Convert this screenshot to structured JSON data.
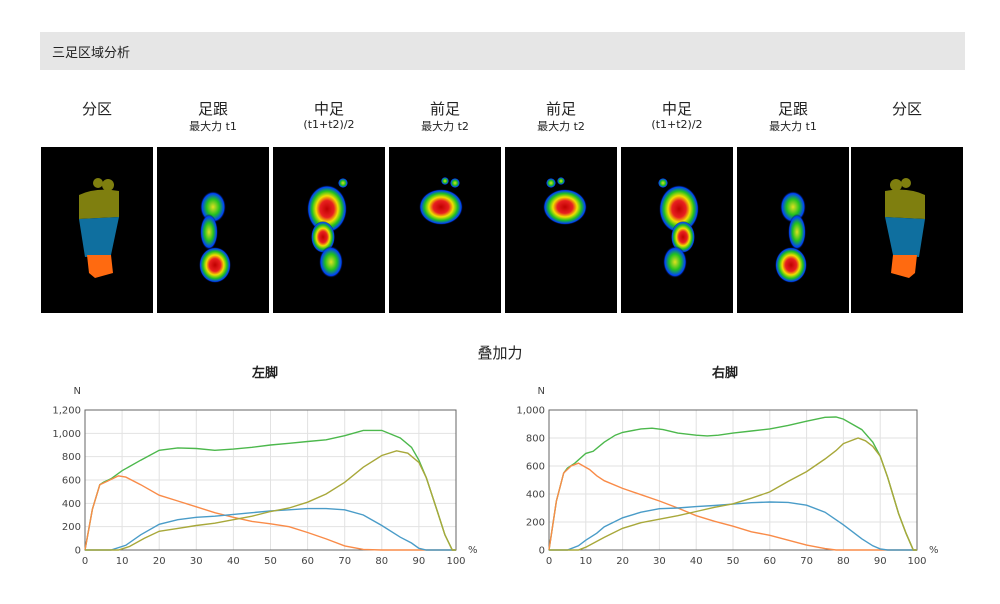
{
  "header": {
    "title": "三足区域分析"
  },
  "columns": [
    {
      "title": "分区",
      "sub": "",
      "kind": "seg",
      "side": "left"
    },
    {
      "title": "足跟",
      "sub": "最大力 t1",
      "kind": "heel",
      "side": "left"
    },
    {
      "title": "中足",
      "sub": "(t1+t2)/2",
      "kind": "mid",
      "side": "left"
    },
    {
      "title": "前足",
      "sub": "最大力 t2",
      "kind": "fore",
      "side": "left"
    },
    {
      "title": "前足",
      "sub": "最大力 t2",
      "kind": "fore",
      "side": "right"
    },
    {
      "title": "中足",
      "sub": "(t1+t2)/2",
      "kind": "mid",
      "side": "right"
    },
    {
      "title": "足跟",
      "sub": "最大力 t1",
      "kind": "heel",
      "side": "right"
    },
    {
      "title": "分区",
      "sub": "",
      "kind": "seg",
      "side": "right"
    }
  ],
  "segment_colors": {
    "forefoot": "#7f7f0f",
    "midfoot": "#0f6f9f",
    "heel": "#ff6a10"
  },
  "overlay_title": "叠加力",
  "chart_data": [
    {
      "type": "line",
      "title": "左脚",
      "ylabel": "N",
      "xlabel": "%",
      "xlim": [
        0,
        100
      ],
      "ylim": [
        0,
        1200
      ],
      "yticks": [
        0,
        200,
        400,
        600,
        800,
        1000,
        1200
      ],
      "ytick_labels": [
        "0",
        "200",
        "400",
        "600",
        "800",
        "1,000",
        "1,200"
      ],
      "xticks": [
        0,
        10,
        20,
        30,
        40,
        50,
        60,
        70,
        80,
        90,
        100
      ],
      "grid": true,
      "series": [
        {
          "color": "#4cb84c",
          "points": [
            [
              0,
              0
            ],
            [
              2,
              350
            ],
            [
              4,
              560
            ],
            [
              5,
              580
            ],
            [
              7,
              610
            ],
            [
              10,
              680
            ],
            [
              15,
              770
            ],
            [
              20,
              855
            ],
            [
              25,
              875
            ],
            [
              30,
              870
            ],
            [
              35,
              855
            ],
            [
              40,
              865
            ],
            [
              45,
              880
            ],
            [
              50,
              900
            ],
            [
              55,
              915
            ],
            [
              60,
              930
            ],
            [
              65,
              945
            ],
            [
              70,
              980
            ],
            [
              75,
              1025
            ],
            [
              80,
              1025
            ],
            [
              85,
              960
            ],
            [
              88,
              880
            ],
            [
              90,
              770
            ],
            [
              92,
              620
            ],
            [
              95,
              330
            ],
            [
              97,
              130
            ],
            [
              99,
              0
            ],
            [
              100,
              0
            ]
          ]
        },
        {
          "color": "#f98b48",
          "points": [
            [
              0,
              0
            ],
            [
              2,
              350
            ],
            [
              4,
              560
            ],
            [
              6,
              590
            ],
            [
              9,
              635
            ],
            [
              11,
              625
            ],
            [
              15,
              560
            ],
            [
              20,
              470
            ],
            [
              25,
              420
            ],
            [
              30,
              370
            ],
            [
              35,
              320
            ],
            [
              40,
              280
            ],
            [
              45,
              245
            ],
            [
              50,
              225
            ],
            [
              55,
              200
            ],
            [
              60,
              150
            ],
            [
              65,
              95
            ],
            [
              70,
              35
            ],
            [
              75,
              5
            ],
            [
              80,
              0
            ],
            [
              100,
              0
            ]
          ]
        },
        {
          "color": "#4a9cc8",
          "points": [
            [
              0,
              0
            ],
            [
              7,
              0
            ],
            [
              11,
              40
            ],
            [
              15,
              130
            ],
            [
              20,
              220
            ],
            [
              25,
              260
            ],
            [
              30,
              280
            ],
            [
              35,
              290
            ],
            [
              40,
              305
            ],
            [
              45,
              320
            ],
            [
              50,
              335
            ],
            [
              55,
              345
            ],
            [
              60,
              355
            ],
            [
              65,
              355
            ],
            [
              70,
              345
            ],
            [
              75,
              300
            ],
            [
              80,
              210
            ],
            [
              85,
              110
            ],
            [
              88,
              60
            ],
            [
              90,
              15
            ],
            [
              92,
              0
            ],
            [
              100,
              0
            ]
          ]
        },
        {
          "color": "#a8a83a",
          "points": [
            [
              0,
              0
            ],
            [
              9,
              0
            ],
            [
              12,
              30
            ],
            [
              16,
              100
            ],
            [
              20,
              160
            ],
            [
              25,
              185
            ],
            [
              30,
              210
            ],
            [
              35,
              230
            ],
            [
              40,
              260
            ],
            [
              45,
              290
            ],
            [
              50,
              330
            ],
            [
              55,
              360
            ],
            [
              60,
              410
            ],
            [
              65,
              480
            ],
            [
              70,
              580
            ],
            [
              75,
              710
            ],
            [
              80,
              810
            ],
            [
              84,
              850
            ],
            [
              87,
              830
            ],
            [
              90,
              750
            ],
            [
              92,
              620
            ],
            [
              95,
              330
            ],
            [
              97,
              130
            ],
            [
              99,
              0
            ],
            [
              100,
              0
            ]
          ]
        }
      ]
    },
    {
      "type": "line",
      "title": "右脚",
      "ylabel": "N",
      "xlabel": "%",
      "xlim": [
        0,
        100
      ],
      "ylim": [
        0,
        1000
      ],
      "yticks": [
        0,
        200,
        400,
        600,
        800,
        1000
      ],
      "ytick_labels": [
        "0",
        "200",
        "400",
        "600",
        "800",
        "1,000"
      ],
      "xticks": [
        0,
        10,
        20,
        30,
        40,
        50,
        60,
        70,
        80,
        90,
        100
      ],
      "grid": true,
      "series": [
        {
          "color": "#4cb84c",
          "points": [
            [
              0,
              0
            ],
            [
              2,
              350
            ],
            [
              4,
              550
            ],
            [
              5,
              585
            ],
            [
              7,
              620
            ],
            [
              10,
              690
            ],
            [
              12,
              705
            ],
            [
              15,
              770
            ],
            [
              18,
              820
            ],
            [
              20,
              840
            ],
            [
              25,
              865
            ],
            [
              28,
              870
            ],
            [
              31,
              860
            ],
            [
              35,
              835
            ],
            [
              40,
              820
            ],
            [
              43,
              815
            ],
            [
              46,
              820
            ],
            [
              50,
              835
            ],
            [
              55,
              850
            ],
            [
              60,
              865
            ],
            [
              65,
              890
            ],
            [
              70,
              920
            ],
            [
              75,
              948
            ],
            [
              78,
              950
            ],
            [
              80,
              935
            ],
            [
              85,
              860
            ],
            [
              88,
              770
            ],
            [
              90,
              670
            ],
            [
              92,
              520
            ],
            [
              95,
              260
            ],
            [
              97,
              120
            ],
            [
              99,
              0
            ],
            [
              100,
              0
            ]
          ]
        },
        {
          "color": "#f98b48",
          "points": [
            [
              0,
              0
            ],
            [
              2,
              350
            ],
            [
              4,
              550
            ],
            [
              6,
              600
            ],
            [
              8,
              620
            ],
            [
              11,
              575
            ],
            [
              13,
              530
            ],
            [
              15,
              495
            ],
            [
              20,
              440
            ],
            [
              25,
              395
            ],
            [
              30,
              350
            ],
            [
              35,
              300
            ],
            [
              40,
              245
            ],
            [
              45,
              205
            ],
            [
              50,
              170
            ],
            [
              55,
              130
            ],
            [
              60,
              105
            ],
            [
              65,
              70
            ],
            [
              70,
              35
            ],
            [
              75,
              10
            ],
            [
              78,
              0
            ],
            [
              100,
              0
            ]
          ]
        },
        {
          "color": "#4a9cc8",
          "points": [
            [
              0,
              0
            ],
            [
              5,
              0
            ],
            [
              8,
              30
            ],
            [
              10,
              70
            ],
            [
              13,
              120
            ],
            [
              15,
              165
            ],
            [
              20,
              230
            ],
            [
              25,
              270
            ],
            [
              30,
              295
            ],
            [
              35,
              300
            ],
            [
              40,
              310
            ],
            [
              45,
              318
            ],
            [
              50,
              328
            ],
            [
              55,
              338
            ],
            [
              60,
              343
            ],
            [
              65,
              340
            ],
            [
              70,
              320
            ],
            [
              75,
              270
            ],
            [
              80,
              180
            ],
            [
              85,
              80
            ],
            [
              88,
              30
            ],
            [
              90,
              8
            ],
            [
              92,
              0
            ],
            [
              100,
              0
            ]
          ]
        },
        {
          "color": "#a8a83a",
          "points": [
            [
              0,
              0
            ],
            [
              8,
              0
            ],
            [
              10,
              20
            ],
            [
              15,
              90
            ],
            [
              20,
              155
            ],
            [
              25,
              195
            ],
            [
              30,
              220
            ],
            [
              35,
              245
            ],
            [
              40,
              275
            ],
            [
              45,
              305
            ],
            [
              50,
              330
            ],
            [
              55,
              370
            ],
            [
              60,
              415
            ],
            [
              65,
              490
            ],
            [
              70,
              560
            ],
            [
              75,
              650
            ],
            [
              78,
              710
            ],
            [
              80,
              760
            ],
            [
              84,
              800
            ],
            [
              86,
              780
            ],
            [
              88,
              740
            ],
            [
              90,
              670
            ],
            [
              92,
              520
            ],
            [
              95,
              260
            ],
            [
              97,
              120
            ],
            [
              99,
              0
            ],
            [
              100,
              0
            ]
          ]
        }
      ]
    }
  ]
}
